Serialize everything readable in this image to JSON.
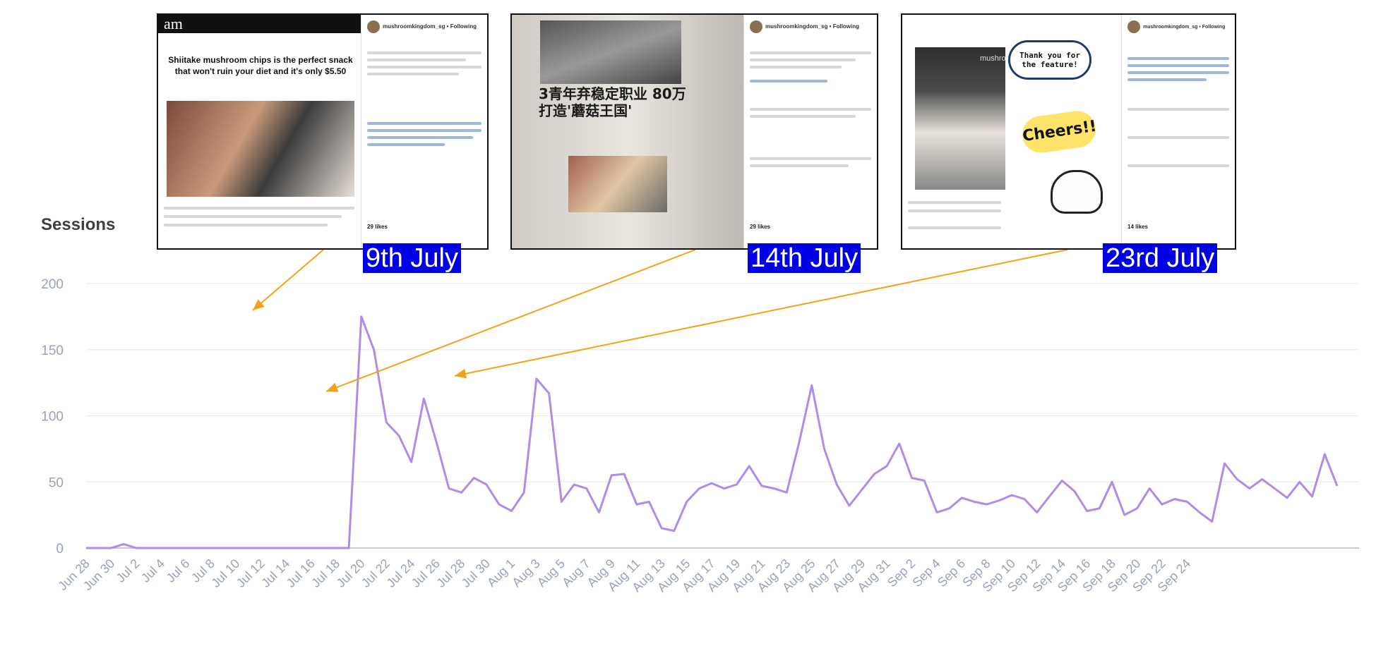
{
  "chart_data": {
    "type": "line",
    "ylabel": "Sessions",
    "ylim": [
      0,
      200
    ],
    "y_ticks": [
      "200",
      "150",
      "100",
      "50",
      "0"
    ],
    "y_tick_values": [
      200,
      150,
      100,
      50,
      0
    ],
    "grid": true,
    "line_color": "#b08be8",
    "x_tick_labels": [
      "Jun 28",
      "Jun 30",
      "Jul 2",
      "Jul 4",
      "Jul 6",
      "Jul 8",
      "Jul 10",
      "Jul 12",
      "Jul 14",
      "Jul 16",
      "Jul 18",
      "Jul 20",
      "Jul 22",
      "Jul 24",
      "Jul 26",
      "Jul 28",
      "Jul 30",
      "Aug 1",
      "Aug 3",
      "Aug 5",
      "Aug 7",
      "Aug 9",
      "Aug 11",
      "Aug 13",
      "Aug 15",
      "Aug 17",
      "Aug 19",
      "Aug 21",
      "Aug 23",
      "Aug 25",
      "Aug 27",
      "Aug 29",
      "Aug 31",
      "Sep 2",
      "Sep 4",
      "Sep 6",
      "Sep 8",
      "Sep 10",
      "Sep 12",
      "Sep 14",
      "Sep 16",
      "Sep 18",
      "Sep 20",
      "Sep 22",
      "Sep 24"
    ],
    "series": [
      {
        "values": [
          0,
          0,
          0,
          3,
          0,
          0,
          0,
          0,
          0,
          0,
          0,
          0,
          0,
          0,
          0,
          0,
          0,
          0,
          0,
          0,
          0,
          0,
          175,
          150,
          95,
          85,
          65,
          113,
          80,
          45,
          42,
          53,
          48,
          33,
          28,
          42,
          128,
          117,
          35,
          48,
          45,
          27,
          55,
          56,
          33,
          35,
          15,
          13,
          35,
          45,
          49,
          45,
          48,
          62,
          47,
          45,
          42,
          80,
          123,
          75,
          48,
          32,
          44,
          56,
          62,
          79,
          53,
          51,
          27,
          30,
          38,
          35,
          33,
          36,
          40,
          37,
          27,
          39,
          51,
          43,
          28,
          30,
          50,
          25,
          30,
          45,
          33,
          37,
          35,
          27,
          20,
          64,
          52,
          45,
          52,
          45,
          38,
          50,
          39,
          71,
          47
        ]
      }
    ],
    "annotations": [
      {
        "label": "9th July",
        "target_index": 11
      },
      {
        "label": "14th July",
        "target_index": 16
      },
      {
        "label": "23rd July",
        "target_index": 25
      }
    ]
  },
  "insets": {
    "a": {
      "logo": "am",
      "handle": "mushroomkingdom_sg • Following",
      "title": "Shiitake mushroom chips is the perfect snack that won't ruin your diet and it's only $5.50",
      "likes": "29 likes"
    },
    "b": {
      "handle": "mushroomkingdom_sg • Following",
      "headline": "3青年弃稳定职业 80万打造'蘑菇王国'",
      "likes": "29 likes"
    },
    "c": {
      "handle": "mushroomkingdom_sg • Following",
      "brand": "mushroom",
      "speech": "Thank you for the feature!",
      "cheers": "Cheers!!",
      "likes": "14 likes"
    }
  }
}
